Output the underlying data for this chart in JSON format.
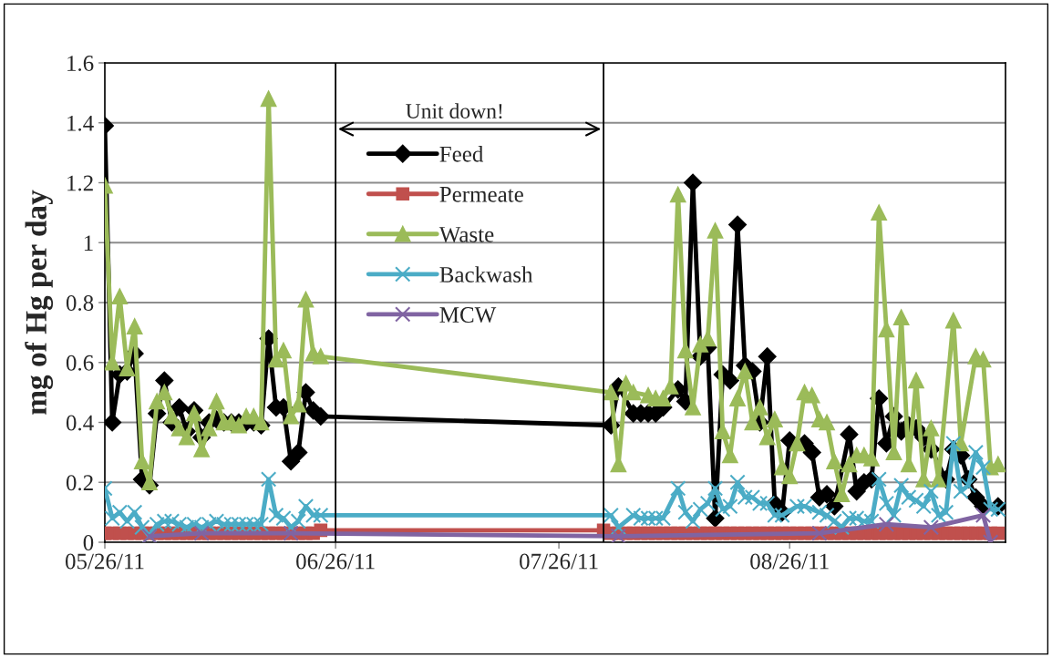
{
  "chart_data": {
    "type": "line",
    "ylabel": "mg of Hg per day",
    "xlim": [
      "2011-05-26",
      "2011-09-24"
    ],
    "xticks": [
      {
        "value": "2011-05-26",
        "label": "05/26/11"
      },
      {
        "value": "2011-06-26",
        "label": "06/26/11"
      },
      {
        "value": "2011-07-26",
        "label": "07/26/11"
      },
      {
        "value": "2011-08-26",
        "label": "08/26/11"
      }
    ],
    "ylim": [
      0,
      1.6
    ],
    "yticks": [
      0,
      0.2,
      0.4,
      0.6,
      0.8,
      1,
      1.2,
      1.4,
      1.6
    ],
    "grid": "y",
    "legend": "top",
    "ref_lines": [
      {
        "axis": "x",
        "value": "2011-06-26",
        "color": "#000000"
      },
      {
        "axis": "x",
        "value": "2011-08-01",
        "color": "#000000"
      }
    ],
    "annotations": [
      "Unit down!"
    ],
    "series": [
      {
        "name": "Feed",
        "color": "#000000",
        "marker": "diamond",
        "x": [
          "2011-05-26",
          "2011-05-27",
          "2011-05-28",
          "2011-05-29",
          "2011-05-30",
          "2011-05-31",
          "2011-06-01",
          "2011-06-02",
          "2011-06-03",
          "2011-06-04",
          "2011-06-05",
          "2011-06-06",
          "2011-06-07",
          "2011-06-08",
          "2011-06-09",
          "2011-06-10",
          "2011-06-11",
          "2011-06-12",
          "2011-06-13",
          "2011-06-14",
          "2011-06-15",
          "2011-06-16",
          "2011-06-17",
          "2011-06-18",
          "2011-06-19",
          "2011-06-20",
          "2011-06-21",
          "2011-06-22",
          "2011-06-23",
          "2011-06-24",
          "2011-08-02",
          "2011-08-03",
          "2011-08-05",
          "2011-08-06",
          "2011-08-07",
          "2011-08-08",
          "2011-08-09",
          "2011-08-11",
          "2011-08-12",
          "2011-08-13",
          "2011-08-14",
          "2011-08-15",
          "2011-08-16",
          "2011-08-17",
          "2011-08-18",
          "2011-08-19",
          "2011-08-20",
          "2011-08-21",
          "2011-08-22",
          "2011-08-23",
          "2011-08-24",
          "2011-08-25",
          "2011-08-26",
          "2011-08-28",
          "2011-08-29",
          "2011-08-30",
          "2011-08-31",
          "2011-09-01",
          "2011-09-03",
          "2011-09-04",
          "2011-09-05",
          "2011-09-06",
          "2011-09-07",
          "2011-09-08",
          "2011-09-09",
          "2011-09-10",
          "2011-09-11",
          "2011-09-12",
          "2011-09-13",
          "2011-09-14",
          "2011-09-16",
          "2011-09-17",
          "2011-09-18",
          "2011-09-19",
          "2011-09-20",
          "2011-09-21",
          "2011-09-23"
        ],
        "values": [
          1.39,
          0.4,
          0.56,
          0.57,
          0.63,
          0.21,
          0.19,
          0.43,
          0.54,
          0.4,
          0.45,
          0.37,
          0.44,
          0.35,
          0.4,
          0.41,
          0.4,
          0.4,
          0.4,
          0.4,
          0.4,
          0.39,
          0.68,
          0.45,
          0.45,
          0.27,
          0.3,
          0.5,
          0.44,
          0.42,
          0.39,
          0.52,
          0.43,
          0.43,
          0.43,
          0.43,
          0.45,
          0.51,
          0.47,
          1.2,
          0.62,
          0.65,
          0.08,
          0.56,
          0.54,
          1.06,
          0.59,
          0.57,
          0.4,
          0.62,
          0.13,
          0.1,
          0.34,
          0.33,
          0.3,
          0.15,
          0.16,
          0.12,
          0.36,
          0.17,
          0.2,
          0.21,
          0.48,
          0.33,
          0.42,
          0.37,
          0.39,
          0.38,
          0.35,
          0.31,
          0.21,
          0.31,
          0.29,
          0.21,
          0.15,
          0.12,
          0.12
        ]
      },
      {
        "name": "Permeate",
        "color": "#c0504d",
        "marker": "square",
        "x": [
          "2011-05-26",
          "2011-05-27",
          "2011-05-28",
          "2011-05-29",
          "2011-05-30",
          "2011-05-31",
          "2011-06-01",
          "2011-06-02",
          "2011-06-03",
          "2011-06-04",
          "2011-06-05",
          "2011-06-06",
          "2011-06-07",
          "2011-06-08",
          "2011-06-09",
          "2011-06-10",
          "2011-06-11",
          "2011-06-12",
          "2011-06-13",
          "2011-06-14",
          "2011-06-15",
          "2011-06-16",
          "2011-06-17",
          "2011-06-18",
          "2011-06-19",
          "2011-06-20",
          "2011-06-21",
          "2011-06-22",
          "2011-06-23",
          "2011-06-24",
          "2011-08-01",
          "2011-08-02",
          "2011-08-03",
          "2011-08-04",
          "2011-08-05",
          "2011-08-06",
          "2011-08-07",
          "2011-08-08",
          "2011-08-09",
          "2011-08-10",
          "2011-08-11",
          "2011-08-12",
          "2011-08-13",
          "2011-08-14",
          "2011-08-15",
          "2011-08-16",
          "2011-08-17",
          "2011-08-18",
          "2011-08-19",
          "2011-08-20",
          "2011-08-21",
          "2011-08-22",
          "2011-08-23",
          "2011-08-24",
          "2011-08-25",
          "2011-08-26",
          "2011-08-27",
          "2011-08-28",
          "2011-08-29",
          "2011-08-30",
          "2011-08-31",
          "2011-09-01",
          "2011-09-02",
          "2011-09-03",
          "2011-09-04",
          "2011-09-05",
          "2011-09-06",
          "2011-09-07",
          "2011-09-08",
          "2011-09-09",
          "2011-09-10",
          "2011-09-11",
          "2011-09-12",
          "2011-09-13",
          "2011-09-14",
          "2011-09-15",
          "2011-09-16",
          "2011-09-17",
          "2011-09-18",
          "2011-09-19",
          "2011-09-20",
          "2011-09-21",
          "2011-09-22",
          "2011-09-23"
        ],
        "values": [
          0.03,
          0.03,
          0.03,
          0.03,
          0.03,
          0.03,
          0.03,
          0.03,
          0.03,
          0.03,
          0.03,
          0.03,
          0.03,
          0.03,
          0.03,
          0.03,
          0.03,
          0.03,
          0.03,
          0.03,
          0.03,
          0.03,
          0.03,
          0.03,
          0.03,
          0.03,
          0.03,
          0.03,
          0.03,
          0.04,
          0.04,
          0.03,
          0.03,
          0.03,
          0.03,
          0.03,
          0.03,
          0.03,
          0.03,
          0.03,
          0.03,
          0.03,
          0.03,
          0.03,
          0.03,
          0.03,
          0.03,
          0.03,
          0.03,
          0.03,
          0.03,
          0.03,
          0.03,
          0.03,
          0.03,
          0.03,
          0.03,
          0.03,
          0.03,
          0.03,
          0.03,
          0.03,
          0.03,
          0.03,
          0.03,
          0.03,
          0.03,
          0.03,
          0.03,
          0.03,
          0.03,
          0.03,
          0.03,
          0.03,
          0.03,
          0.03,
          0.03,
          0.03,
          0.03,
          0.03,
          0.03,
          0.03,
          0.03,
          0.03
        ]
      },
      {
        "name": "Waste",
        "color": "#9bbb59",
        "marker": "triangle",
        "x": [
          "2011-05-26",
          "2011-05-27",
          "2011-05-28",
          "2011-05-29",
          "2011-05-30",
          "2011-05-31",
          "2011-06-01",
          "2011-06-02",
          "2011-06-03",
          "2011-06-04",
          "2011-06-05",
          "2011-06-06",
          "2011-06-07",
          "2011-06-08",
          "2011-06-09",
          "2011-06-10",
          "2011-06-11",
          "2011-06-12",
          "2011-06-13",
          "2011-06-14",
          "2011-06-15",
          "2011-06-16",
          "2011-06-17",
          "2011-06-18",
          "2011-06-19",
          "2011-06-20",
          "2011-06-21",
          "2011-06-22",
          "2011-06-23",
          "2011-06-24",
          "2011-08-02",
          "2011-08-03",
          "2011-08-04",
          "2011-08-05",
          "2011-08-07",
          "2011-08-08",
          "2011-08-09",
          "2011-08-10",
          "2011-08-11",
          "2011-08-12",
          "2011-08-13",
          "2011-08-14",
          "2011-08-15",
          "2011-08-16",
          "2011-08-17",
          "2011-08-18",
          "2011-08-19",
          "2011-08-20",
          "2011-08-21",
          "2011-08-22",
          "2011-08-23",
          "2011-08-24",
          "2011-08-25",
          "2011-08-26",
          "2011-08-27",
          "2011-08-28",
          "2011-08-29",
          "2011-08-30",
          "2011-08-31",
          "2011-09-01",
          "2011-09-02",
          "2011-09-03",
          "2011-09-04",
          "2011-09-05",
          "2011-09-06",
          "2011-09-07",
          "2011-09-08",
          "2011-09-09",
          "2011-09-10",
          "2011-09-11",
          "2011-09-12",
          "2011-09-13",
          "2011-09-14",
          "2011-09-15",
          "2011-09-17",
          "2011-09-18",
          "2011-09-20",
          "2011-09-21",
          "2011-09-22",
          "2011-09-23"
        ],
        "values": [
          1.19,
          0.6,
          0.82,
          0.58,
          0.72,
          0.27,
          0.2,
          0.47,
          0.5,
          0.42,
          0.38,
          0.35,
          0.43,
          0.31,
          0.38,
          0.47,
          0.4,
          0.4,
          0.39,
          0.42,
          0.42,
          0.4,
          1.48,
          0.61,
          0.64,
          0.42,
          0.46,
          0.81,
          0.63,
          0.62,
          0.5,
          0.26,
          0.53,
          0.5,
          0.49,
          0.48,
          0.48,
          0.52,
          1.16,
          0.64,
          0.45,
          0.66,
          0.68,
          1.04,
          0.37,
          0.29,
          0.48,
          0.57,
          0.4,
          0.45,
          0.35,
          0.41,
          0.25,
          0.22,
          0.33,
          0.5,
          0.49,
          0.41,
          0.4,
          0.27,
          0.16,
          0.26,
          0.29,
          0.29,
          0.28,
          1.1,
          0.71,
          0.3,
          0.75,
          0.26,
          0.54,
          0.21,
          0.38,
          0.21,
          0.74,
          0.33,
          0.62,
          0.61,
          0.25,
          0.26
        ]
      },
      {
        "name": "Backwash",
        "color": "#4bacc6",
        "marker": "cross",
        "x": [
          "2011-05-26",
          "2011-05-27",
          "2011-05-28",
          "2011-05-29",
          "2011-05-30",
          "2011-05-31",
          "2011-06-01",
          "2011-06-02",
          "2011-06-03",
          "2011-06-04",
          "2011-06-05",
          "2011-06-06",
          "2011-06-07",
          "2011-06-08",
          "2011-06-09",
          "2011-06-10",
          "2011-06-11",
          "2011-06-12",
          "2011-06-13",
          "2011-06-14",
          "2011-06-15",
          "2011-06-16",
          "2011-06-17",
          "2011-06-18",
          "2011-06-19",
          "2011-06-20",
          "2011-06-21",
          "2011-06-22",
          "2011-06-23",
          "2011-06-24",
          "2011-08-02",
          "2011-08-03",
          "2011-08-05",
          "2011-08-06",
          "2011-08-07",
          "2011-08-08",
          "2011-08-09",
          "2011-08-11",
          "2011-08-12",
          "2011-08-13",
          "2011-08-14",
          "2011-08-15",
          "2011-08-16",
          "2011-08-17",
          "2011-08-18",
          "2011-08-19",
          "2011-08-20",
          "2011-08-21",
          "2011-08-22",
          "2011-08-23",
          "2011-08-24",
          "2011-08-25",
          "2011-08-27",
          "2011-08-28",
          "2011-08-30",
          "2011-08-31",
          "2011-09-01",
          "2011-09-02",
          "2011-09-03",
          "2011-09-04",
          "2011-09-05",
          "2011-09-06",
          "2011-09-07",
          "2011-09-08",
          "2011-09-09",
          "2011-09-10",
          "2011-09-11",
          "2011-09-12",
          "2011-09-13",
          "2011-09-14",
          "2011-09-15",
          "2011-09-16",
          "2011-09-17",
          "2011-09-18",
          "2011-09-19",
          "2011-09-20",
          "2011-09-21",
          "2011-09-22",
          "2011-09-23"
        ],
        "values": [
          0.18,
          0.08,
          0.1,
          0.07,
          0.1,
          0.05,
          0.02,
          0.06,
          0.07,
          0.07,
          0.06,
          0.05,
          0.06,
          0.05,
          0.06,
          0.07,
          0.06,
          0.06,
          0.06,
          0.06,
          0.06,
          0.06,
          0.21,
          0.09,
          0.08,
          0.05,
          0.07,
          0.12,
          0.09,
          0.09,
          0.09,
          0.05,
          0.09,
          0.08,
          0.08,
          0.08,
          0.08,
          0.18,
          0.1,
          0.07,
          0.11,
          0.13,
          0.18,
          0.11,
          0.12,
          0.2,
          0.15,
          0.15,
          0.13,
          0.13,
          0.09,
          0.09,
          0.12,
          0.12,
          0.1,
          0.09,
          0.07,
          0.05,
          0.08,
          0.08,
          0.07,
          0.07,
          0.21,
          0.13,
          0.09,
          0.19,
          0.15,
          0.14,
          0.12,
          0.17,
          0.09,
          0.1,
          0.33,
          0.17,
          0.19,
          0.3,
          0.25,
          0.11,
          0.11
        ]
      },
      {
        "name": "MCW",
        "color": "#8064a2",
        "marker": "cross",
        "x": [
          "2011-06-01",
          "2011-06-08",
          "2011-06-20",
          "2011-08-03",
          "2011-08-30",
          "2011-09-08",
          "2011-09-14",
          "2011-09-21",
          "2011-09-22"
        ],
        "values": [
          0.02,
          0.03,
          0.03,
          0.02,
          0.03,
          0.06,
          0.05,
          0.09,
          0.0
        ]
      }
    ]
  }
}
